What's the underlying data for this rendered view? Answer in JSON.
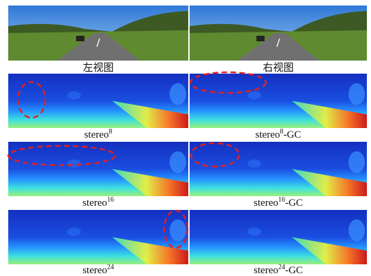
{
  "figure": {
    "panels": [
      {
        "caption": {
          "text": "左视图"
        }
      },
      {
        "caption": {
          "text": "右视图"
        }
      },
      {
        "caption": {
          "base": "stereo",
          "sup": "8"
        }
      },
      {
        "caption": {
          "base": "stereo",
          "sup": "8",
          "suffix": "-GC"
        }
      },
      {
        "caption": {
          "base": "stereo",
          "sup": "16"
        }
      },
      {
        "caption": {
          "base": "stereo",
          "sup": "16",
          "suffix": "-GC"
        }
      },
      {
        "caption": {
          "base": "stereo",
          "sup": "24"
        }
      },
      {
        "caption": {
          "base": "stereo",
          "sup": "24",
          "suffix": "-GC"
        }
      }
    ]
  }
}
